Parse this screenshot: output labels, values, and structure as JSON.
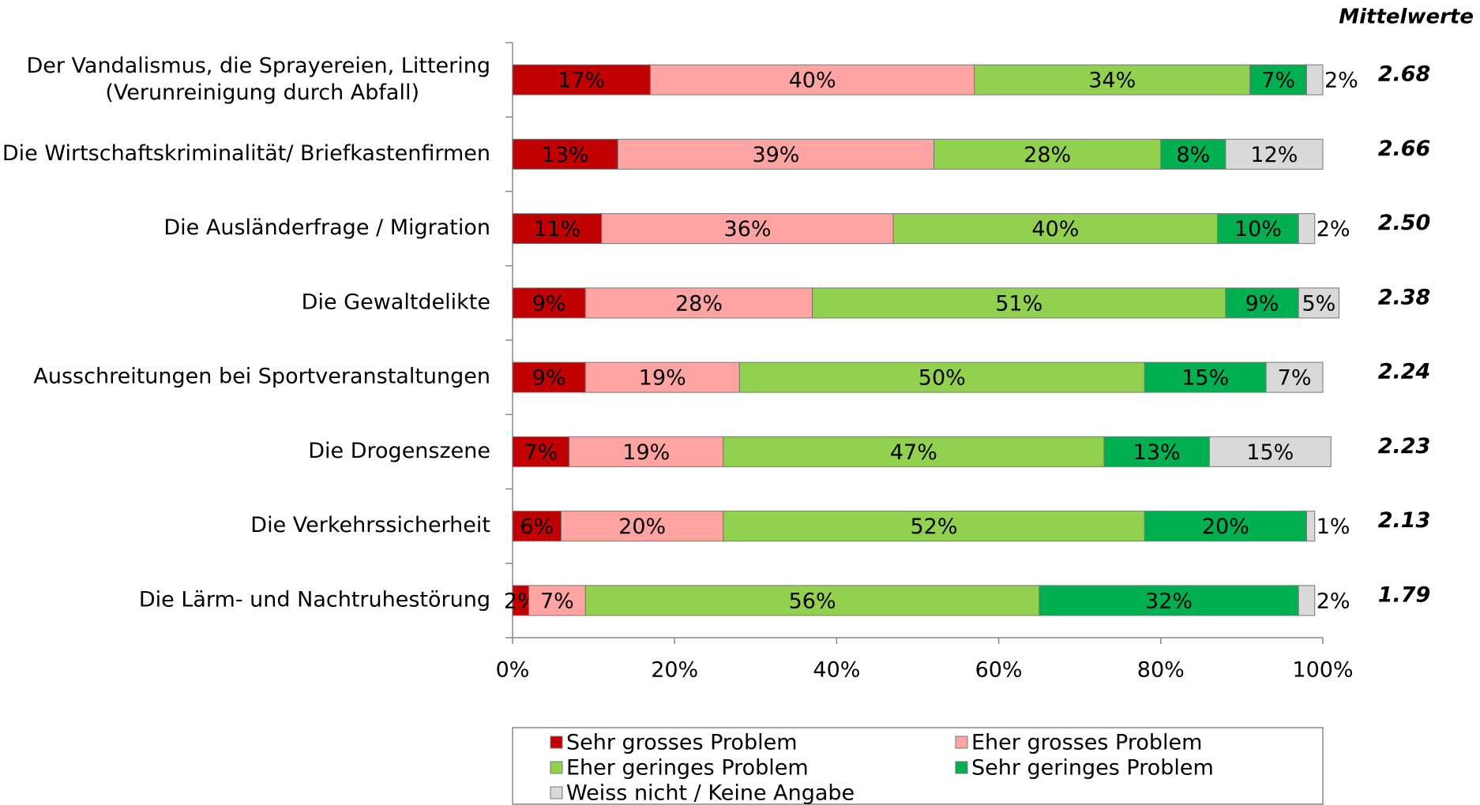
{
  "chart_data": {
    "type": "stacked-barh",
    "categories": [
      "Der Vandalismus, die Sprayereien, Littering\n(Verunreinigung durch Abfall)",
      "Die Wirtschaftskriminalität/ Briefkastenfirmen",
      "Die Ausländerfrage / Migration",
      "Die Gewaltdelikte",
      "Ausschreitungen bei Sportveranstaltungen",
      "Die Drogenszene",
      "Die Verkehrssicherheit",
      "Die Lärm- und Nachtruhestörung"
    ],
    "series": [
      {
        "name": "Sehr grosses Problem",
        "color": "#c00000",
        "values": [
          17,
          13,
          11,
          9,
          9,
          7,
          6,
          2
        ],
        "value_labels": [
          "17%",
          "13%",
          "11%",
          "9%",
          "9%",
          "7%",
          "6%",
          "2%"
        ]
      },
      {
        "name": "Eher grosses Problem",
        "color": "#ffa3a3",
        "values": [
          40,
          39,
          36,
          28,
          19,
          19,
          20,
          7
        ],
        "value_labels": [
          "40%",
          "39%",
          "36%",
          "28%",
          "19%",
          "19%",
          "20%",
          "7%"
        ]
      },
      {
        "name": "Eher geringes Problem",
        "color": "#92d050",
        "values": [
          34,
          28,
          40,
          51,
          50,
          47,
          52,
          56
        ],
        "value_labels": [
          "34%",
          "28%",
          "40%",
          "51%",
          "50%",
          "47%",
          "52%",
          "56%"
        ]
      },
      {
        "name": "Sehr geringes Problem",
        "color": "#00b050",
        "values": [
          7,
          8,
          10,
          9,
          15,
          13,
          20,
          32
        ],
        "value_labels": [
          "7%",
          "8%",
          "10%",
          "9%",
          "15%",
          "13%",
          "20%",
          "32%"
        ]
      },
      {
        "name": "Weiss nicht / Keine Angabe",
        "color": "#d9d9d9",
        "values": [
          2,
          12,
          2,
          5,
          7,
          15,
          1,
          2
        ],
        "value_labels": [
          "2%",
          "12%",
          "2%",
          "5%",
          "7%",
          "15%",
          "1%",
          "2%"
        ]
      }
    ],
    "xlim": [
      0,
      100
    ],
    "xticks": [
      {
        "value": 0,
        "label": "0%"
      },
      {
        "value": 20,
        "label": "20%"
      },
      {
        "value": 40,
        "label": "40%"
      },
      {
        "value": 60,
        "label": "60%"
      },
      {
        "value": 80,
        "label": "80%"
      },
      {
        "value": 100,
        "label": "100%"
      }
    ],
    "means": {
      "title": "Mittelwerte",
      "values": [
        2.68,
        2.66,
        2.5,
        2.38,
        2.24,
        2.23,
        2.13,
        1.79
      ],
      "value_labels": [
        "2.68",
        "2.66",
        "2.50",
        "2.38",
        "2.24",
        "2.23",
        "2.13",
        "1.79"
      ]
    },
    "legend": "bottom"
  }
}
